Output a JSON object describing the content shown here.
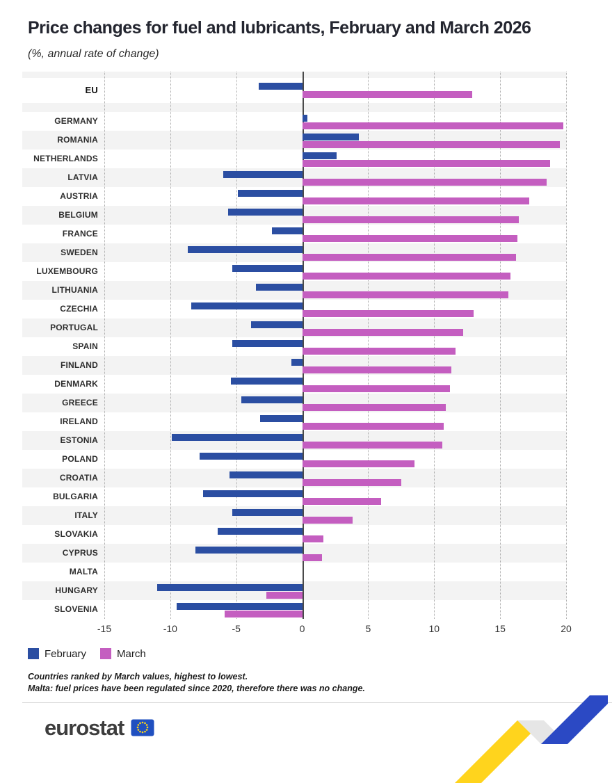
{
  "title": "Price changes for fuel and lubricants, February and March 2026",
  "subtitle": "(%, annual rate of change)",
  "legend": {
    "february": "February",
    "march": "March"
  },
  "footnotes": [
    "Countries ranked by March values, highest to lowest.",
    "Malta: fuel prices have been regulated since 2020, therefore there was no change."
  ],
  "branding": {
    "logo_text": "eurostat"
  },
  "colors": {
    "february": "#2b4ea2",
    "march": "#c45ec0",
    "zero_line": "#4a4a4a",
    "gridline": "#a9a9a9",
    "stripe": "#f3f3f3",
    "ribbon_yellow": "#ffd41d",
    "ribbon_fold": "#e6e6e6",
    "ribbon_blue": "#2b49c4",
    "eu_flag_blue": "#2050c0",
    "star_yellow": "#ffd617"
  },
  "chart_data": {
    "type": "bar",
    "orientation": "horizontal",
    "title": "Price changes for fuel and lubricants, February and March 2026",
    "subtitle": "(%, annual rate of change)",
    "unit": "%, annual rate of change",
    "xlim": [
      -15,
      20
    ],
    "xticks": [
      -15,
      -10,
      -5,
      0,
      5,
      10,
      15,
      20
    ],
    "grid": "vertical-dotted",
    "legend_position": "bottom",
    "categories": [
      "EU",
      "GERMANY",
      "ROMANIA",
      "NETHERLANDS",
      "LATVIA",
      "AUSTRIA",
      "BELGIUM",
      "FRANCE",
      "SWEDEN",
      "LUXEMBOURG",
      "LITHUANIA",
      "CZECHIA",
      "PORTUGAL",
      "SPAIN",
      "FINLAND",
      "DENMARK",
      "GREECE",
      "IRELAND",
      "ESTONIA",
      "POLAND",
      "CROATIA",
      "BULGARIA",
      "ITALY",
      "SLOVAKIA",
      "CYPRUS",
      "MALTA",
      "HUNGARY",
      "SLOVENIA"
    ],
    "series": [
      {
        "name": "February",
        "values": [
          -3.3,
          0.4,
          4.3,
          2.6,
          -6.0,
          -4.9,
          -5.6,
          -2.3,
          -8.7,
          -5.3,
          -3.5,
          -8.4,
          -3.9,
          -5.3,
          -0.8,
          -5.4,
          -4.6,
          -3.2,
          -9.9,
          -7.8,
          -5.5,
          -7.5,
          -5.3,
          -6.4,
          -8.1,
          0,
          -11.0,
          -9.5
        ]
      },
      {
        "name": "March",
        "values": [
          12.9,
          19.8,
          19.5,
          18.8,
          18.5,
          17.2,
          16.4,
          16.3,
          16.2,
          15.8,
          15.6,
          13.0,
          12.2,
          11.6,
          11.3,
          11.2,
          10.9,
          10.7,
          10.6,
          8.5,
          7.5,
          6.0,
          3.8,
          1.6,
          1.5,
          0,
          -2.7,
          -5.9
        ]
      }
    ]
  }
}
